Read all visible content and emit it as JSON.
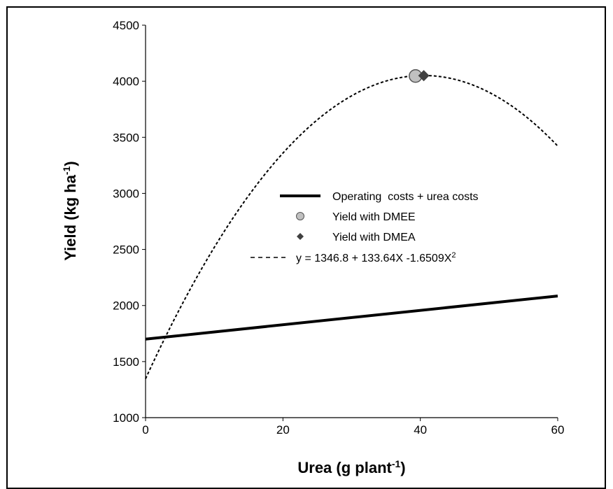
{
  "chart_data": {
    "type": "line",
    "xlabel": "Urea (g plant",
    "xlabel_sup": "-1",
    "xlabel_end": ")",
    "ylabel": "Yield (kg ha",
    "ylabel_sup": "-1",
    "ylabel_end": ")",
    "xlim": [
      0,
      60
    ],
    "ylim": [
      1000,
      4500
    ],
    "xticks": [
      0,
      20,
      40,
      60
    ],
    "yticks": [
      1000,
      1500,
      2000,
      2500,
      3000,
      3500,
      4000,
      4500
    ],
    "grid": false,
    "legend_position": "center",
    "series": [
      {
        "name": "Operating  costs + urea costs",
        "style": "solid-thick",
        "color": "#000000",
        "x": [
          0,
          60
        ],
        "y": [
          1700,
          2085
        ]
      },
      {
        "name": "Yield with DMEE",
        "style": "marker-circle",
        "color": "#c0c0c0",
        "x": [
          39.3
        ],
        "y": [
          4047
        ]
      },
      {
        "name": "Yield with DMEA",
        "style": "marker-diamond",
        "color": "#404040",
        "x": [
          40.5
        ],
        "y": [
          4050
        ]
      },
      {
        "name": "y = 1346.8 + 133.64X -1.6509X",
        "name_sup": "2",
        "style": "dashed-fit",
        "color": "#000000",
        "equation": {
          "a": 1346.8,
          "b": 133.64,
          "c": -1.6509
        },
        "x_range": [
          0,
          60
        ]
      }
    ]
  }
}
